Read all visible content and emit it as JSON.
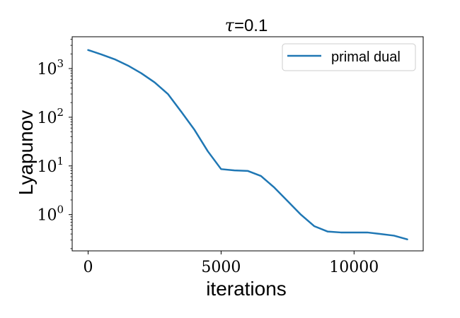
{
  "chart_data": {
    "type": "line",
    "title_symbol": "τ",
    "title_suffix": "=0.1",
    "xlabel": "iterations",
    "ylabel": "Lyapunov",
    "yscale": "log",
    "xlim": [
      -600,
      12600
    ],
    "ylim": [
      0.18,
      4500
    ],
    "xticks": [
      {
        "value": 0,
        "label": "0"
      },
      {
        "value": 5000,
        "label": "5000"
      },
      {
        "value": 10000,
        "label": "10000"
      }
    ],
    "yticks": [
      {
        "value": 1,
        "base": "10",
        "exp": "0"
      },
      {
        "value": 10,
        "base": "10",
        "exp": "1"
      },
      {
        "value": 100,
        "base": "10",
        "exp": "2"
      },
      {
        "value": 1000,
        "base": "10",
        "exp": "3"
      }
    ],
    "grid": false,
    "legend_position": "top-right",
    "series": [
      {
        "name": "primal dual",
        "color": "#1f77b4",
        "x": [
          0,
          500,
          1000,
          1500,
          2000,
          2500,
          3000,
          3500,
          4000,
          4500,
          5000,
          5500,
          6000,
          6500,
          7000,
          7500,
          8000,
          8500,
          9000,
          9500,
          10000,
          10500,
          11000,
          11500,
          12000
        ],
        "y": [
          2400,
          1950,
          1550,
          1150,
          800,
          520,
          300,
          130,
          55,
          20,
          8.6,
          8.1,
          7.9,
          6.2,
          3.6,
          1.9,
          1.0,
          0.58,
          0.45,
          0.43,
          0.43,
          0.43,
          0.4,
          0.37,
          0.31
        ]
      }
    ]
  }
}
